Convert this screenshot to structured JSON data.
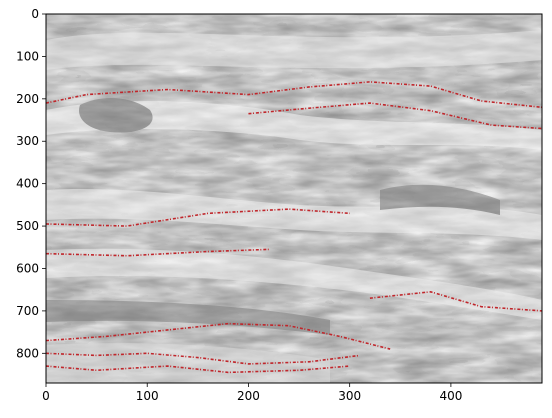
{
  "figure": {
    "image_description_colors": {
      "background_gray": "#808080",
      "light": "#f2f2f2",
      "overlay_red": "#c0262b"
    }
  },
  "chart_data": {
    "type": "heatmap",
    "title": "",
    "xlabel": "",
    "ylabel": "",
    "xlim": [
      0,
      490
    ],
    "ylim": [
      870,
      0
    ],
    "x_ticks": [
      0,
      100,
      200,
      300,
      400
    ],
    "y_ticks": [
      0,
      100,
      200,
      300,
      400,
      500,
      600,
      700,
      800
    ],
    "grid": false,
    "legend": "none",
    "red_overlay_curves": [
      {
        "points": [
          [
            0,
            210
          ],
          [
            40,
            190
          ],
          [
            120,
            178
          ],
          [
            200,
            190
          ],
          [
            260,
            172
          ],
          [
            320,
            160
          ],
          [
            380,
            170
          ],
          [
            430,
            205
          ],
          [
            490,
            220
          ]
        ]
      },
      {
        "points": [
          [
            200,
            235
          ],
          [
            260,
            222
          ],
          [
            320,
            210
          ],
          [
            380,
            228
          ],
          [
            440,
            262
          ],
          [
            490,
            270
          ]
        ]
      },
      {
        "points": [
          [
            0,
            770
          ],
          [
            60,
            760
          ],
          [
            120,
            745
          ],
          [
            180,
            730
          ],
          [
            240,
            735
          ],
          [
            290,
            760
          ],
          [
            340,
            790
          ]
        ]
      },
      {
        "points": [
          [
            0,
            800
          ],
          [
            50,
            805
          ],
          [
            100,
            800
          ],
          [
            150,
            810
          ],
          [
            200,
            825
          ],
          [
            260,
            820
          ],
          [
            310,
            805
          ]
        ]
      },
      {
        "points": [
          [
            0,
            830
          ],
          [
            50,
            840
          ],
          [
            120,
            830
          ],
          [
            180,
            845
          ],
          [
            250,
            840
          ],
          [
            300,
            830
          ]
        ]
      },
      {
        "points": [
          [
            320,
            670
          ],
          [
            380,
            655
          ],
          [
            430,
            690
          ],
          [
            490,
            700
          ]
        ]
      },
      {
        "points": [
          [
            0,
            495
          ],
          [
            80,
            500
          ],
          [
            160,
            470
          ],
          [
            240,
            460
          ],
          [
            300,
            470
          ]
        ]
      },
      {
        "points": [
          [
            0,
            565
          ],
          [
            80,
            570
          ],
          [
            160,
            560
          ],
          [
            220,
            555
          ]
        ]
      }
    ]
  }
}
